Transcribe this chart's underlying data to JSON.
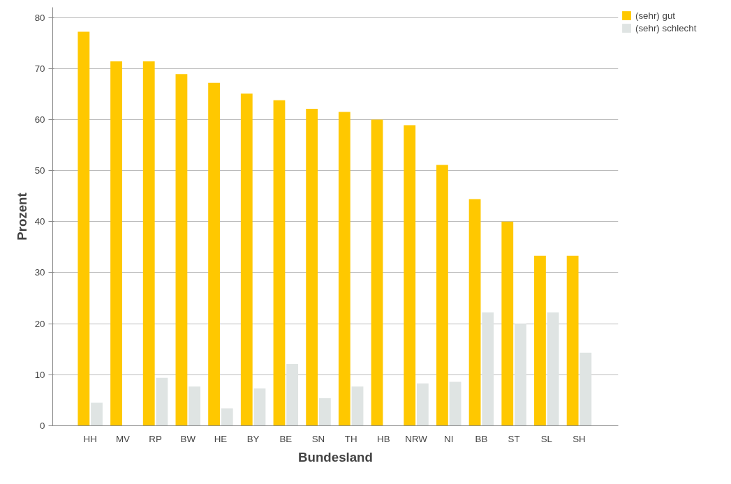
{
  "chart_data": {
    "type": "bar",
    "xlabel": "Bundesland",
    "ylabel": "Prozent",
    "categories": [
      "HH",
      "MV",
      "RP",
      "BW",
      "HE",
      "BY",
      "BE",
      "SN",
      "TH",
      "HB",
      "NRW",
      "NI",
      "BB",
      "ST",
      "SL",
      "SH"
    ],
    "series": [
      {
        "name": "(sehr) gut",
        "color": "#ffc800",
        "values": [
          77.2,
          71.4,
          71.4,
          68.9,
          67.2,
          65.1,
          63.8,
          62.1,
          61.5,
          60.0,
          58.9,
          51.1,
          44.4,
          40.0,
          33.3,
          33.3
        ]
      },
      {
        "name": "(sehr) schlecht",
        "color": "#dfe4e3",
        "values": [
          4.5,
          null,
          9.4,
          7.7,
          3.4,
          7.3,
          12.1,
          5.4,
          7.7,
          null,
          8.3,
          8.6,
          22.2,
          20.0,
          22.2,
          14.3
        ]
      }
    ],
    "ylim": [
      0,
      82
    ],
    "yticks": [
      0,
      10,
      20,
      30,
      40,
      50,
      60,
      70,
      80
    ],
    "grid": "y",
    "legend": "top right"
  }
}
